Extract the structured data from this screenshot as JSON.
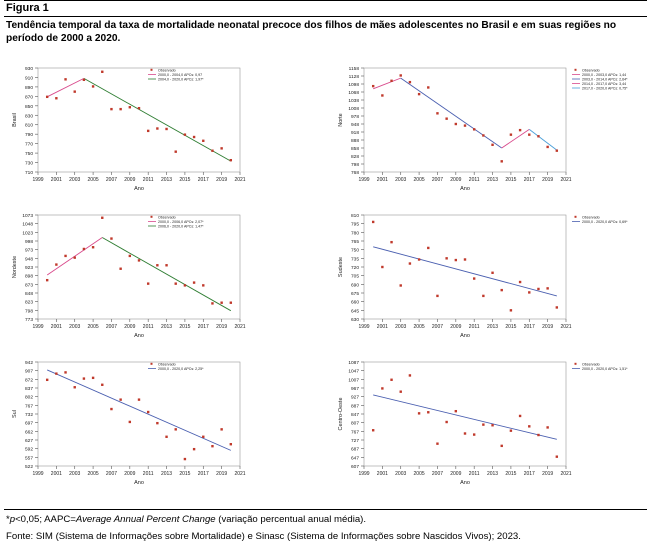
{
  "figure": {
    "label": "Figura 1",
    "caption": "Tendência temporal da taxa de mortalidade neonatal precoce dos filhos de mães adolescentes no Brasil e em suas regiões no período de 2000 a 2020.",
    "note_star": "*",
    "note_p": "p",
    "note_rest": "<0,05; AAPC=",
    "note_italic": "Average Annual Percent Change",
    "note_tail": " (variação percentual anual média).",
    "source": "Fonte: SIM (Sistema de Informações sobre Mortalidade) e Sinasc (Sistema de Informações sobre Nascidos Vivos); 2023."
  },
  "chart_data": [
    {
      "type": "scatter",
      "region": "Brasil",
      "ylabel": "Brasil",
      "xlabel": "Ano",
      "x_ticks": [
        1999,
        2001,
        2003,
        2005,
        2007,
        2009,
        2011,
        2013,
        2015,
        2017,
        2019,
        2021
      ],
      "y_ticks": [
        710,
        730,
        750,
        770,
        790,
        810,
        830,
        850,
        870,
        890,
        910,
        930
      ],
      "x_range": [
        1999,
        2021
      ],
      "y_range": [
        710,
        930
      ],
      "point_color": "#c0392b",
      "points": [
        [
          2000,
          869
        ],
        [
          2001,
          866
        ],
        [
          2002,
          906
        ],
        [
          2003,
          880
        ],
        [
          2004,
          905
        ],
        [
          2005,
          891
        ],
        [
          2006,
          922
        ],
        [
          2007,
          843
        ],
        [
          2008,
          843
        ],
        [
          2009,
          847
        ],
        [
          2010,
          845
        ],
        [
          2011,
          797
        ],
        [
          2012,
          802
        ],
        [
          2013,
          801
        ],
        [
          2014,
          753
        ],
        [
          2015,
          789
        ],
        [
          2016,
          784
        ],
        [
          2017,
          776
        ],
        [
          2018,
          755
        ],
        [
          2019,
          760
        ],
        [
          2020,
          735
        ]
      ],
      "segments": [
        {
          "x0": 2000,
          "y0": 869,
          "x1": 2004,
          "y1": 908,
          "color": "#d94a8c"
        },
        {
          "x0": 2004,
          "y0": 908,
          "x1": 2020,
          "y1": 733,
          "color": "#2e7d32"
        }
      ],
      "legend": [
        "Observado",
        "2000,0 - 2004,0 APCs: 0,97",
        "2004,0 - 2020,0 APCs: 1,97*"
      ],
      "legend_colors": [
        "#c0392b",
        "#d94a8c",
        "#2e7d32"
      ]
    },
    {
      "type": "scatter",
      "region": "Norte",
      "ylabel": "Norte",
      "xlabel": "Ano",
      "x_ticks": [
        1999,
        2001,
        2003,
        2005,
        2007,
        2009,
        2011,
        2013,
        2015,
        2017,
        2019,
        2021
      ],
      "y_ticks": [
        768,
        798,
        828,
        858,
        888,
        918,
        948,
        978,
        1008,
        1038,
        1068,
        1098,
        1128,
        1158
      ],
      "x_range": [
        1999,
        2021
      ],
      "y_range": [
        768,
        1158
      ],
      "point_color": "#c0392b",
      "points": [
        [
          2000,
          1090
        ],
        [
          2001,
          1055
        ],
        [
          2002,
          1110
        ],
        [
          2003,
          1130
        ],
        [
          2004,
          1105
        ],
        [
          2005,
          1060
        ],
        [
          2006,
          1085
        ],
        [
          2007,
          988
        ],
        [
          2008,
          968
        ],
        [
          2009,
          948
        ],
        [
          2010,
          942
        ],
        [
          2011,
          928
        ],
        [
          2012,
          905
        ],
        [
          2013,
          870
        ],
        [
          2014,
          808
        ],
        [
          2015,
          908
        ],
        [
          2016,
          925
        ],
        [
          2017,
          908
        ],
        [
          2018,
          902
        ],
        [
          2019,
          862
        ],
        [
          2020,
          848
        ]
      ],
      "segments": [
        {
          "x0": 2000,
          "y0": 1080,
          "x1": 2003,
          "y1": 1120,
          "color": "#d94a8c"
        },
        {
          "x0": 2003,
          "y0": 1120,
          "x1": 2014,
          "y1": 858,
          "color": "#4a5fb0"
        },
        {
          "x0": 2014,
          "y0": 858,
          "x1": 2017,
          "y1": 928,
          "color": "#d94a8c"
        },
        {
          "x0": 2017,
          "y0": 928,
          "x1": 2020,
          "y1": 850,
          "color": "#4a9fd9"
        }
      ],
      "legend": [
        "Observado",
        "2000,0 - 2003,0 APCs: 1,44",
        "2003,0 - 2014,0 APCs: 2,64*",
        "2014,0 - 2017,0 APCs: 3,44",
        "2017,0 - 2020,0 APCs: 0,75*"
      ],
      "legend_colors": [
        "#c0392b",
        "#d94a8c",
        "#4a5fb0",
        "#d94a8c",
        "#4a9fd9"
      ]
    },
    {
      "type": "scatter",
      "region": "Nordeste",
      "ylabel": "Nordeste",
      "xlabel": "Ano",
      "x_ticks": [
        1999,
        2001,
        2003,
        2005,
        2007,
        2009,
        2011,
        2013,
        2015,
        2017,
        2019,
        2021
      ],
      "y_ticks": [
        773,
        798,
        823,
        848,
        873,
        898,
        923,
        948,
        973,
        998,
        1023,
        1048,
        1073
      ],
      "x_range": [
        1999,
        2021
      ],
      "y_range": [
        773,
        1073
      ],
      "point_color": "#c0392b",
      "points": [
        [
          2000,
          885
        ],
        [
          2001,
          930
        ],
        [
          2002,
          955
        ],
        [
          2003,
          950
        ],
        [
          2004,
          975
        ],
        [
          2005,
          980
        ],
        [
          2006,
          1065
        ],
        [
          2007,
          1005
        ],
        [
          2008,
          918
        ],
        [
          2009,
          955
        ],
        [
          2010,
          942
        ],
        [
          2011,
          875
        ],
        [
          2012,
          928
        ],
        [
          2013,
          928
        ],
        [
          2014,
          875
        ],
        [
          2015,
          870
        ],
        [
          2016,
          878
        ],
        [
          2017,
          870
        ],
        [
          2018,
          818
        ],
        [
          2019,
          820
        ],
        [
          2020,
          820
        ]
      ],
      "segments": [
        {
          "x0": 2000,
          "y0": 900,
          "x1": 2006,
          "y1": 1008,
          "color": "#d94a8c"
        },
        {
          "x0": 2006,
          "y0": 1008,
          "x1": 2020,
          "y1": 797,
          "color": "#2e7d32"
        }
      ],
      "legend": [
        "Observado",
        "2000,0 - 2006,0 APCs: 2,07*",
        "2006,0 - 2020,0 APCs: 1,47*"
      ],
      "legend_colors": [
        "#c0392b",
        "#d94a8c",
        "#2e7d32"
      ]
    },
    {
      "type": "scatter",
      "region": "Sudeste",
      "ylabel": "Sudeste",
      "xlabel": "Ano",
      "x_ticks": [
        1999,
        2001,
        2003,
        2005,
        2007,
        2009,
        2011,
        2013,
        2015,
        2017,
        2019,
        2021
      ],
      "y_ticks": [
        630,
        645,
        660,
        675,
        690,
        705,
        720,
        735,
        750,
        765,
        780,
        795,
        810
      ],
      "x_range": [
        1999,
        2021
      ],
      "y_range": [
        630,
        810
      ],
      "point_color": "#c0392b",
      "points": [
        [
          2000,
          798
        ],
        [
          2001,
          720
        ],
        [
          2002,
          763
        ],
        [
          2003,
          688
        ],
        [
          2004,
          726
        ],
        [
          2005,
          733
        ],
        [
          2006,
          753
        ],
        [
          2007,
          670
        ],
        [
          2008,
          735
        ],
        [
          2009,
          732
        ],
        [
          2010,
          733
        ],
        [
          2011,
          700
        ],
        [
          2012,
          670
        ],
        [
          2013,
          710
        ],
        [
          2014,
          680
        ],
        [
          2015,
          645
        ],
        [
          2016,
          694
        ],
        [
          2017,
          676
        ],
        [
          2018,
          682
        ],
        [
          2019,
          683
        ],
        [
          2020,
          650
        ]
      ],
      "segments": [
        {
          "x0": 2000,
          "y0": 755,
          "x1": 2020,
          "y1": 670,
          "color": "#4a5fb0"
        }
      ],
      "legend": [
        "Observado",
        "2000,0 - 2020,0 APCs: 0,69*"
      ],
      "legend_colors": [
        "#c0392b",
        "#4a5fb0"
      ]
    },
    {
      "type": "scatter",
      "region": "Sul",
      "ylabel": "Sul",
      "xlabel": "Ano",
      "x_ticks": [
        1999,
        2001,
        2003,
        2005,
        2007,
        2009,
        2011,
        2013,
        2015,
        2017,
        2019,
        2021
      ],
      "y_ticks": [
        522,
        557,
        592,
        627,
        662,
        697,
        732,
        767,
        802,
        837,
        872,
        907,
        942
      ],
      "x_range": [
        1999,
        2021
      ],
      "y_range": [
        522,
        942
      ],
      "point_color": "#c0392b",
      "points": [
        [
          2000,
          870
        ],
        [
          2001,
          895
        ],
        [
          2002,
          900
        ],
        [
          2003,
          840
        ],
        [
          2004,
          875
        ],
        [
          2005,
          878
        ],
        [
          2006,
          850
        ],
        [
          2007,
          752
        ],
        [
          2008,
          790
        ],
        [
          2009,
          700
        ],
        [
          2010,
          790
        ],
        [
          2011,
          740
        ],
        [
          2012,
          695
        ],
        [
          2013,
          640
        ],
        [
          2014,
          670
        ],
        [
          2015,
          550
        ],
        [
          2016,
          590
        ],
        [
          2017,
          640
        ],
        [
          2018,
          602
        ],
        [
          2019,
          670
        ],
        [
          2020,
          610
        ]
      ],
      "segments": [
        {
          "x0": 2000,
          "y0": 910,
          "x1": 2020,
          "y1": 585,
          "color": "#4a5fb0"
        }
      ],
      "legend": [
        "Observado",
        "2000,0 - 2020,0 APCs: 2,25*"
      ],
      "legend_colors": [
        "#c0392b",
        "#4a5fb0"
      ]
    },
    {
      "type": "scatter",
      "region": "Centro-Oeste",
      "ylabel": "Centro-Oeste",
      "xlabel": "Ano",
      "x_ticks": [
        1999,
        2001,
        2003,
        2005,
        2007,
        2009,
        2011,
        2013,
        2015,
        2017,
        2019,
        2021
      ],
      "y_ticks": [
        607,
        647,
        687,
        727,
        767,
        807,
        847,
        887,
        927,
        967,
        1007,
        1047,
        1087
      ],
      "x_range": [
        1999,
        2021
      ],
      "y_range": [
        607,
        1087
      ],
      "point_color": "#c0392b",
      "points": [
        [
          2000,
          772
        ],
        [
          2001,
          965
        ],
        [
          2002,
          1005
        ],
        [
          2003,
          950
        ],
        [
          2004,
          1025
        ],
        [
          2005,
          850
        ],
        [
          2006,
          855
        ],
        [
          2007,
          710
        ],
        [
          2008,
          810
        ],
        [
          2009,
          860
        ],
        [
          2010,
          757
        ],
        [
          2011,
          752
        ],
        [
          2012,
          798
        ],
        [
          2013,
          795
        ],
        [
          2014,
          700
        ],
        [
          2015,
          770
        ],
        [
          2016,
          838
        ],
        [
          2017,
          790
        ],
        [
          2018,
          750
        ],
        [
          2019,
          785
        ],
        [
          2020,
          650
        ]
      ],
      "segments": [
        {
          "x0": 2000,
          "y0": 935,
          "x1": 2020,
          "y1": 730,
          "color": "#4a5fb0"
        }
      ],
      "legend": [
        "Observado",
        "2000,0 - 2020,0 APCs: 1,51*"
      ],
      "legend_colors": [
        "#c0392b",
        "#4a5fb0"
      ]
    }
  ]
}
